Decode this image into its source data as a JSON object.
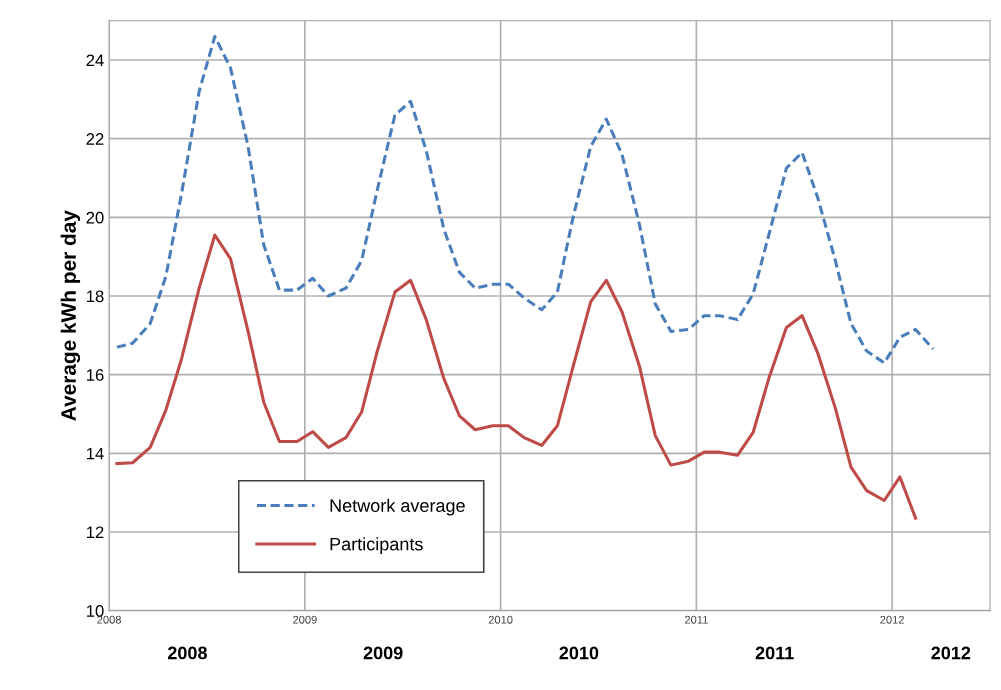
{
  "chart_data": {
    "type": "line",
    "ylabel": "Average kWh per day",
    "xlim": [
      2008,
      2012.5
    ],
    "xticks": [
      2008,
      2009,
      2010,
      2011,
      2012
    ],
    "x2lim": [
      2008,
      2012.5
    ],
    "x2ticks": [
      {
        "value": 2008.4,
        "label": "2008"
      },
      {
        "value": 2009.4,
        "label": "2009"
      },
      {
        "value": 2010.4,
        "label": "2010"
      },
      {
        "value": 2011.4,
        "label": "2011"
      },
      {
        "value": 2012.3,
        "label": "2012"
      }
    ],
    "ylim": [
      10,
      25
    ],
    "yticks": [
      10,
      12,
      14,
      16,
      18,
      20,
      22,
      24
    ],
    "grid": true,
    "legend": "bottom left",
    "marker": "none",
    "series": [
      {
        "name": "Network average",
        "color": "#4a7ebb",
        "line_style": "dashed",
        "x": [
          2008.04,
          2008.12,
          2008.21,
          2008.29,
          2008.37,
          2008.46,
          2008.54,
          2008.62,
          2008.71,
          2008.79,
          2008.87,
          2008.96,
          2009.04,
          2009.12,
          2009.21,
          2009.29,
          2009.37,
          2009.46,
          2009.54,
          2009.62,
          2009.71,
          2009.79,
          2009.87,
          2009.96,
          2010.04,
          2010.12,
          2010.21,
          2010.29,
          2010.37,
          2010.46,
          2010.54,
          2010.62,
          2010.71,
          2010.79,
          2010.87,
          2010.96,
          2011.04,
          2011.12,
          2011.21,
          2011.29,
          2011.37,
          2011.46,
          2011.54,
          2011.62,
          2011.71,
          2011.79,
          2011.87,
          2011.96,
          2012.04,
          2012.12,
          2012.21
        ],
        "values": [
          16.7,
          16.8,
          17.3,
          18.5,
          20.6,
          23.2,
          24.6,
          23.8,
          21.8,
          19.3,
          18.15,
          18.15,
          18.45,
          18.0,
          18.2,
          18.9,
          20.7,
          22.6,
          22.95,
          21.7,
          19.7,
          18.6,
          18.2,
          18.3,
          18.3,
          17.95,
          17.65,
          18.1,
          20.0,
          21.8,
          22.5,
          21.6,
          19.8,
          17.8,
          17.1,
          17.15,
          17.5,
          17.5,
          17.4,
          18.05,
          19.55,
          21.25,
          21.65,
          20.5,
          18.9,
          17.3,
          16.6,
          16.3,
          16.95,
          17.15,
          16.65
        ]
      },
      {
        "name": "Participants",
        "color": "#be4b48",
        "line_style": "solid",
        "x": [
          2008.04,
          2008.12,
          2008.21,
          2008.29,
          2008.37,
          2008.46,
          2008.54,
          2008.62,
          2008.71,
          2008.79,
          2008.87,
          2008.96,
          2009.04,
          2009.12,
          2009.21,
          2009.29,
          2009.37,
          2009.46,
          2009.54,
          2009.62,
          2009.71,
          2009.79,
          2009.87,
          2009.96,
          2010.04,
          2010.12,
          2010.21,
          2010.29,
          2010.37,
          2010.46,
          2010.54,
          2010.62,
          2010.71,
          2010.79,
          2010.87,
          2010.96,
          2011.04,
          2011.12,
          2011.21,
          2011.29,
          2011.37,
          2011.46,
          2011.54,
          2011.62,
          2011.71,
          2011.79,
          2011.87,
          2011.96,
          2012.04,
          2012.12
        ],
        "values": [
          13.74,
          13.76,
          14.15,
          15.1,
          16.4,
          18.2,
          19.55,
          18.95,
          17.1,
          15.3,
          14.3,
          14.3,
          14.55,
          14.15,
          14.4,
          15.05,
          16.6,
          18.1,
          18.4,
          17.4,
          15.9,
          14.95,
          14.6,
          14.7,
          14.7,
          14.4,
          14.2,
          14.7,
          16.2,
          17.85,
          18.4,
          17.6,
          16.2,
          14.45,
          13.7,
          13.8,
          14.03,
          14.03,
          13.95,
          14.53,
          15.9,
          17.2,
          17.5,
          16.55,
          15.15,
          13.65,
          13.05,
          12.8,
          13.4,
          12.35
        ]
      }
    ]
  }
}
